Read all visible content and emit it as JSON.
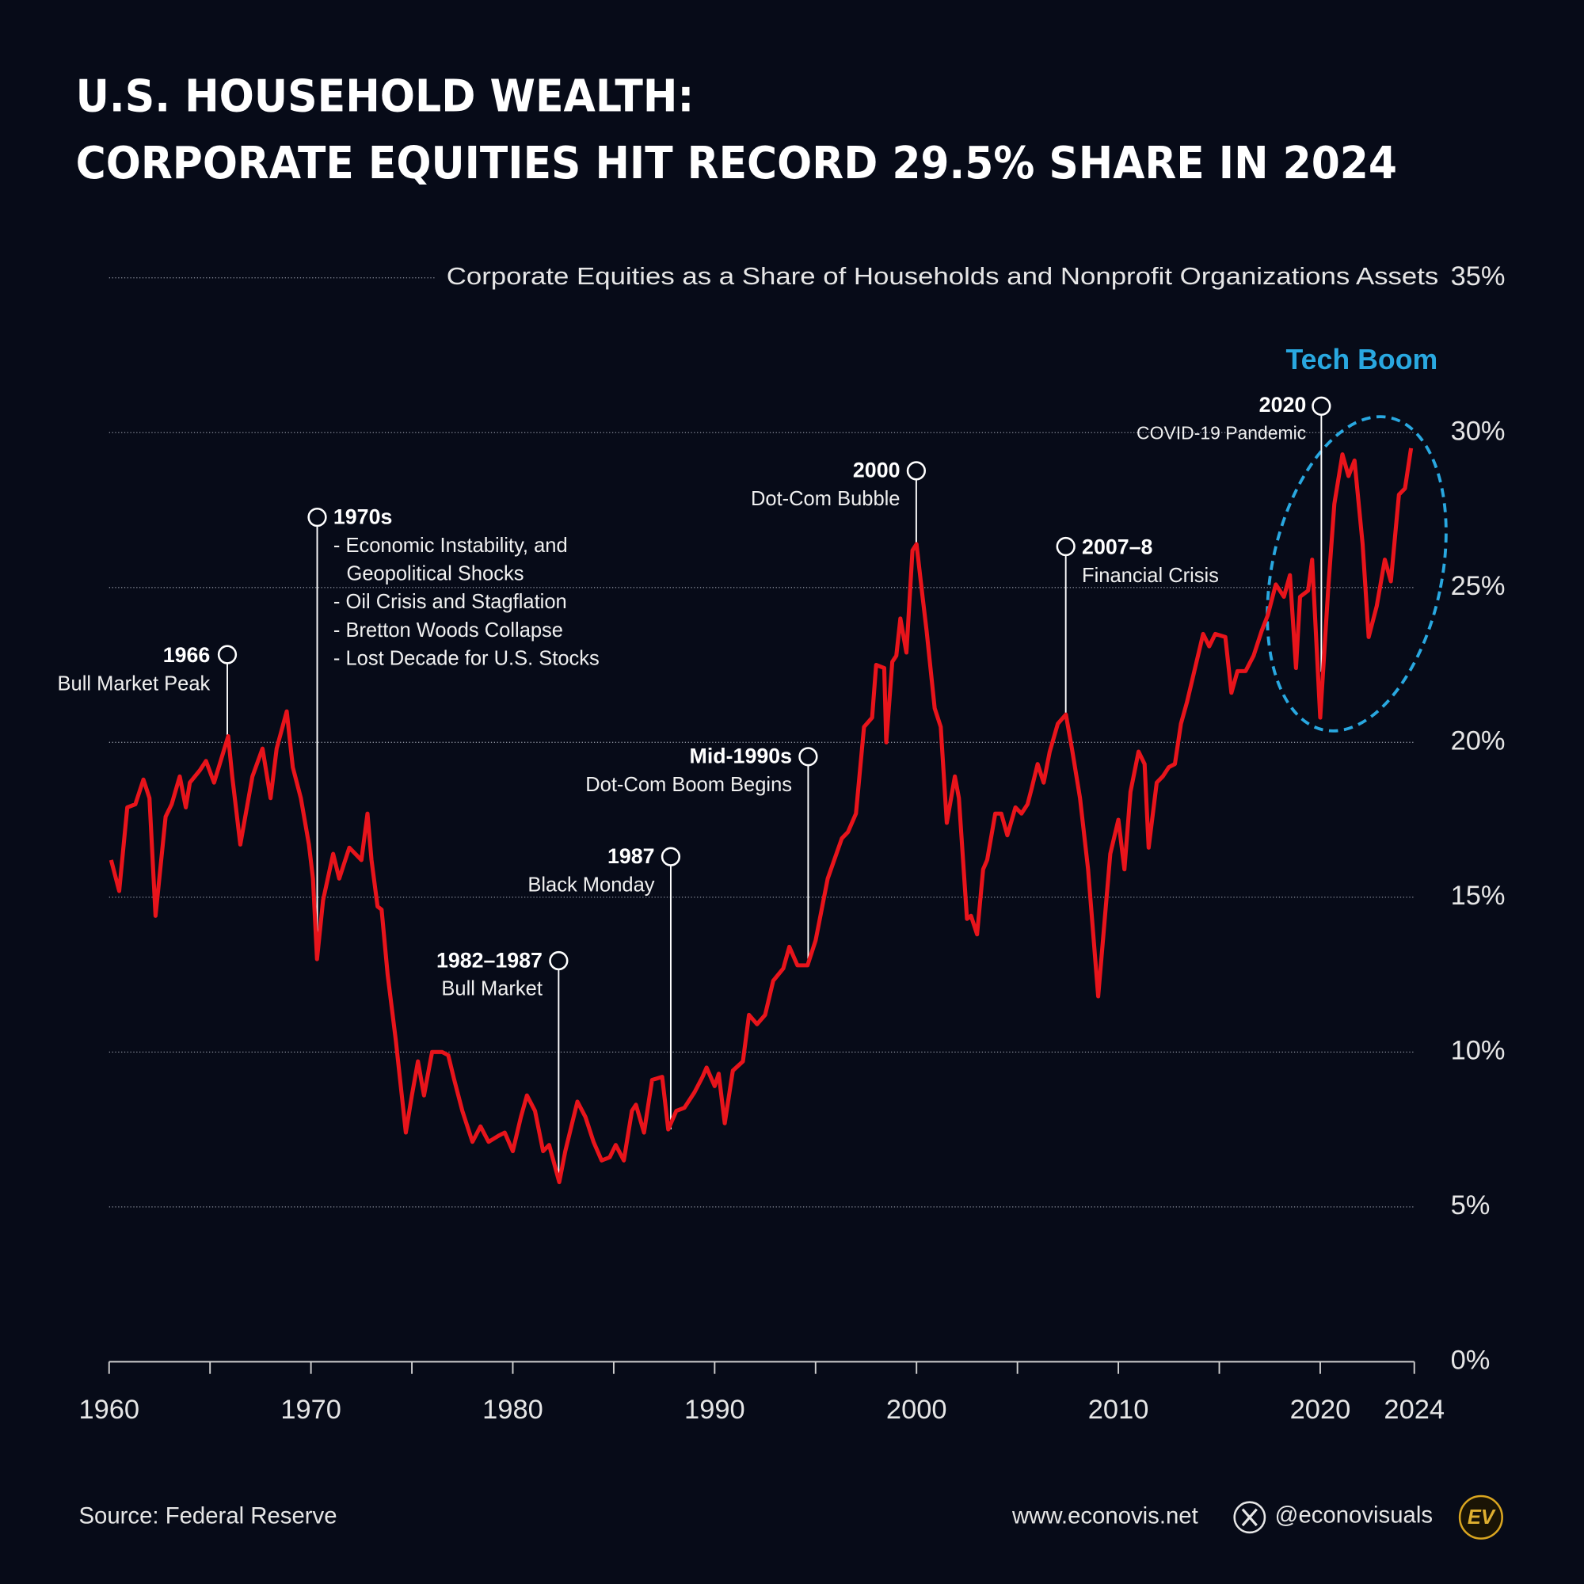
{
  "chart_data": {
    "type": "line",
    "title_lines": [
      "U.S. HOUSEHOLD WEALTH:",
      "CORPORATE EQUITIES HIT RECORD 29.5% SHARE IN 2024"
    ],
    "subtitle": "Corporate Equities as a Share of Households and Nonprofit Organizations Assets",
    "xlim": [
      1960,
      2024.66
    ],
    "xticks": [
      1960,
      1970,
      1980,
      1990,
      2000,
      2010,
      2020,
      {
        "value": 2024.66,
        "label": "2024"
      }
    ],
    "x_minor_ticks": [
      1965,
      1975,
      1985,
      1995,
      2005,
      2015
    ],
    "ylim": [
      0,
      35
    ],
    "yticks": [
      {
        "value": 0,
        "label": "0%"
      },
      {
        "value": 5,
        "label": "5%"
      },
      {
        "value": 10,
        "label": "10%"
      },
      {
        "value": 15,
        "label": "15%"
      },
      {
        "value": 20,
        "label": "20%"
      },
      {
        "value": 25,
        "label": "25%"
      },
      {
        "value": 30,
        "label": "30%"
      },
      {
        "value": 35,
        "label": "35%"
      }
    ],
    "grid": true,
    "series": [
      {
        "name": "Corporate Equities Share",
        "color": "#e8141b",
        "x": [
          1960.1,
          1960.5,
          1960.9,
          1961.3,
          1961.7,
          1962.0,
          1962.3,
          1962.8,
          1963.1,
          1963.5,
          1963.8,
          1964.0,
          1964.5,
          1964.8,
          1965.2,
          1965.9,
          1966.1,
          1966.5,
          1967.1,
          1967.6,
          1968.0,
          1968.3,
          1968.8,
          1969.1,
          1969.5,
          1969.9,
          1970.1,
          1970.3,
          1970.6,
          1971.1,
          1971.4,
          1971.9,
          1972.5,
          1972.8,
          1973.0,
          1973.3,
          1973.5,
          1973.8,
          1974.2,
          1974.7,
          1975.0,
          1975.3,
          1975.6,
          1976.0,
          1976.5,
          1976.8,
          1977.1,
          1977.5,
          1978.0,
          1978.4,
          1978.8,
          1979.3,
          1979.6,
          1980.0,
          1980.4,
          1980.7,
          1981.1,
          1981.5,
          1981.8,
          1982.3,
          1982.6,
          1983.2,
          1983.6,
          1984.0,
          1984.4,
          1984.8,
          1985.1,
          1985.5,
          1985.9,
          1986.1,
          1986.5,
          1986.9,
          1987.4,
          1987.7,
          1988.1,
          1988.5,
          1989.0,
          1989.4,
          1989.6,
          1990.0,
          1990.2,
          1990.5,
          1990.9,
          1991.4,
          1991.7,
          1992.1,
          1992.5,
          1992.9,
          1993.4,
          1993.7,
          1994.1,
          1994.6,
          1995.0,
          1995.6,
          1996.3,
          1996.6,
          1997.0,
          1997.4,
          1997.8,
          1998.0,
          1998.4,
          1998.5,
          1998.8,
          1999.0,
          1999.2,
          1999.5,
          1999.8,
          2000.0,
          2000.3,
          2000.5,
          2000.9,
          2001.2,
          2001.5,
          2001.9,
          2002.1,
          2002.5,
          2002.7,
          2003.0,
          2003.3,
          2003.5,
          2003.9,
          2004.2,
          2004.5,
          2004.9,
          2005.2,
          2005.5,
          2005.7,
          2006.0,
          2006.3,
          2006.6,
          2007.0,
          2007.4,
          2007.7,
          2008.1,
          2008.5,
          2009.0,
          2009.3,
          2009.6,
          2010.0,
          2010.3,
          2010.6,
          2011.0,
          2011.3,
          2011.5,
          2011.9,
          2012.2,
          2012.5,
          2012.8,
          2013.1,
          2013.4,
          2013.8,
          2014.2,
          2014.5,
          2014.8,
          2015.3,
          2015.6,
          2015.9,
          2016.3,
          2016.7,
          2017.1,
          2017.4,
          2017.8,
          2018.2,
          2018.5,
          2018.8,
          2019.0,
          2019.4,
          2019.6,
          2020.0,
          2020.4,
          2020.7,
          2021.1,
          2021.4,
          2021.7,
          2022.1,
          2022.4,
          2022.8,
          2023.2,
          2023.5,
          2023.9,
          2024.2,
          2024.5
        ],
        "values": [
          16.2,
          15.2,
          17.9,
          18.0,
          18.8,
          18.2,
          14.4,
          17.6,
          18.0,
          18.9,
          17.9,
          18.7,
          19.1,
          19.4,
          18.7,
          20.2,
          18.9,
          16.7,
          18.9,
          19.8,
          18.2,
          19.8,
          21.0,
          19.2,
          18.2,
          16.7,
          15.6,
          13.0,
          14.9,
          16.4,
          15.6,
          16.6,
          16.2,
          17.7,
          16.2,
          14.7,
          14.6,
          12.5,
          10.4,
          7.4,
          8.6,
          9.7,
          8.6,
          10.0,
          10.0,
          9.9,
          9.1,
          8.1,
          7.1,
          7.6,
          7.1,
          7.3,
          7.4,
          6.8,
          7.9,
          8.6,
          8.1,
          6.8,
          7.0,
          5.8,
          6.8,
          8.4,
          7.9,
          7.1,
          6.5,
          6.6,
          7.0,
          6.5,
          8.1,
          8.3,
          7.4,
          9.1,
          9.2,
          7.5,
          8.1,
          8.2,
          8.7,
          9.2,
          9.5,
          8.9,
          9.3,
          7.7,
          9.4,
          9.7,
          11.2,
          10.9,
          11.2,
          12.3,
          12.7,
          13.4,
          12.8,
          12.8,
          13.6,
          15.6,
          16.9,
          17.1,
          17.7,
          20.5,
          20.8,
          22.5,
          22.4,
          20.0,
          22.6,
          22.8,
          24.0,
          22.9,
          26.2,
          26.4,
          24.7,
          23.6,
          21.1,
          20.5,
          17.4,
          18.9,
          18.2,
          14.3,
          14.4,
          13.8,
          15.9,
          16.2,
          17.7,
          17.7,
          17.0,
          17.9,
          17.7,
          18.0,
          18.5,
          19.3,
          18.7,
          19.7,
          20.6,
          20.9,
          19.8,
          18.2,
          15.9,
          11.8,
          14.1,
          16.4,
          17.5,
          15.9,
          18.4,
          19.7,
          19.3,
          16.6,
          18.7,
          18.9,
          19.2,
          19.3,
          20.6,
          21.3,
          22.4,
          23.5,
          23.1,
          23.5,
          23.4,
          21.6,
          22.3,
          22.3,
          22.8,
          23.6,
          24.1,
          25.1,
          24.7,
          25.4,
          22.4,
          24.7,
          24.9,
          25.9,
          20.8,
          25.0,
          27.7,
          29.3,
          28.6,
          29.1,
          26.4,
          23.4,
          24.4,
          25.9,
          25.2,
          28.0,
          28.2,
          29.5
        ]
      }
    ],
    "annotations": [
      {
        "label": "1966",
        "lines": [
          "Bull Market Peak"
        ]
      },
      {
        "label": "1970s",
        "lines": [
          "- Economic Instability, and",
          "Geopolitical Shocks",
          "- Oil Crisis and Stagflation",
          "- Bretton Woods Collapse",
          "- Lost Decade for U.S. Stocks"
        ]
      },
      {
        "label": "1982–1987",
        "lines": [
          "Bull Market"
        ]
      },
      {
        "label": "1987",
        "lines": [
          "Black Monday"
        ]
      },
      {
        "label": "Mid-1990s",
        "lines": [
          "Dot-Com Boom Begins"
        ]
      },
      {
        "label": "2000",
        "lines": [
          "Dot-Com Bubble"
        ]
      },
      {
        "label": "2007–8",
        "lines": [
          "Financial Crisis"
        ]
      },
      {
        "label": "2020",
        "lines": [
          "COVID-19 Pandemic"
        ]
      }
    ],
    "highlight": {
      "label": "Tech Boom",
      "color": "#29a8e0"
    },
    "source": "Source: Federal Reserve",
    "website": "www.econovis.net",
    "handle": "@econovisuals",
    "logo": "EV"
  }
}
